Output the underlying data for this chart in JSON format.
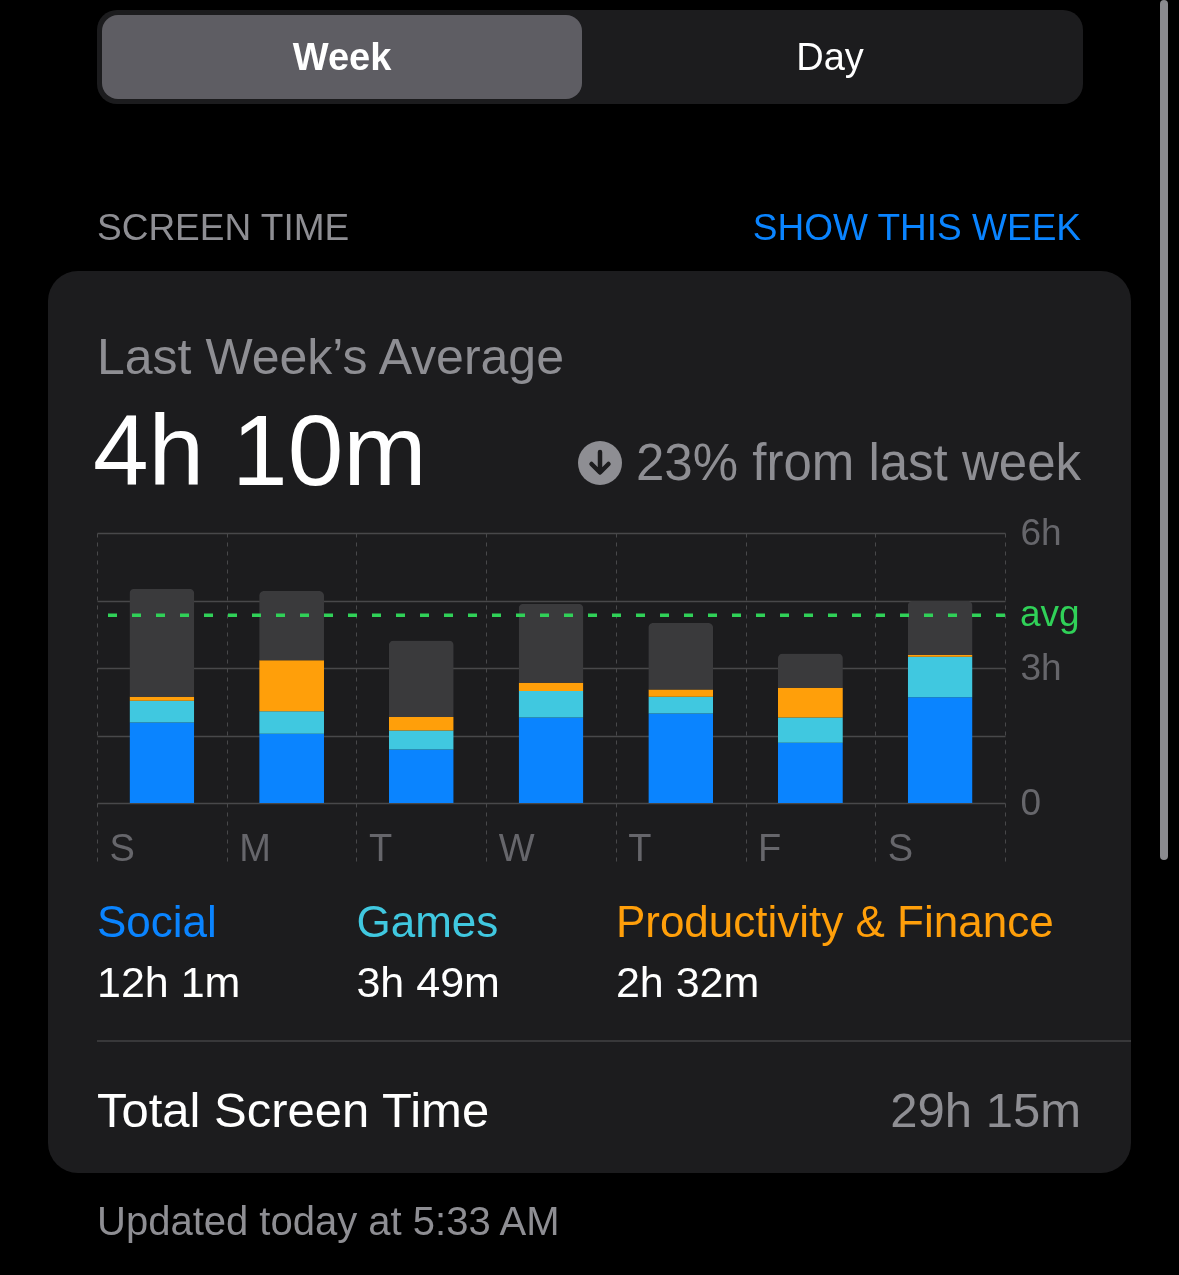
{
  "chart_data": {
    "type": "bar",
    "stacked": true,
    "title": "Last Week’s Average",
    "subtitle": "4h 10m",
    "categories": [
      "S",
      "M",
      "T",
      "W",
      "T",
      "F",
      "S"
    ],
    "series": [
      {
        "name": "Social",
        "color": "#0a84ff",
        "values": [
          1.79,
          1.54,
          1.19,
          1.9,
          1.99,
          1.34,
          2.35
        ]
      },
      {
        "name": "Games",
        "color": "#40c8e0",
        "values": [
          0.48,
          0.5,
          0.42,
          0.59,
          0.37,
          0.56,
          0.9
        ]
      },
      {
        "name": "Productivity & Finance",
        "color": "#ff9f0a",
        "values": [
          0.09,
          1.13,
          0.3,
          0.18,
          0.16,
          0.66,
          0.04
        ]
      },
      {
        "color": "#3a3a3c",
        "values": [
          2.4,
          1.54,
          1.7,
          1.76,
          1.48,
          0.76,
          1.2
        ]
      }
    ],
    "ylim": [
      0,
      6
    ],
    "yticks": [
      0,
      {
        "value": 1.5,
        "label": null
      },
      {
        "value": 3,
        "label": "3h"
      },
      {
        "value": 4.5,
        "label": null
      },
      {
        "value": 6,
        "label": "6h"
      }
    ],
    "grid": true,
    "legend": "bottom",
    "ref_lines": [
      {
        "axis": "y",
        "value": 4.17,
        "label": "avg",
        "color": "#30d158",
        "line_style": "dashed"
      }
    ],
    "annotations": [
      "Week",
      "Day",
      "SCREEN TIME",
      "SHOW THIS WEEK",
      "23% from last week",
      "12h 1m",
      "3h 49m",
      "2h 32m",
      "Total Screen Time",
      "29h 15m",
      "Updated today at 5:33 AM"
    ]
  }
}
